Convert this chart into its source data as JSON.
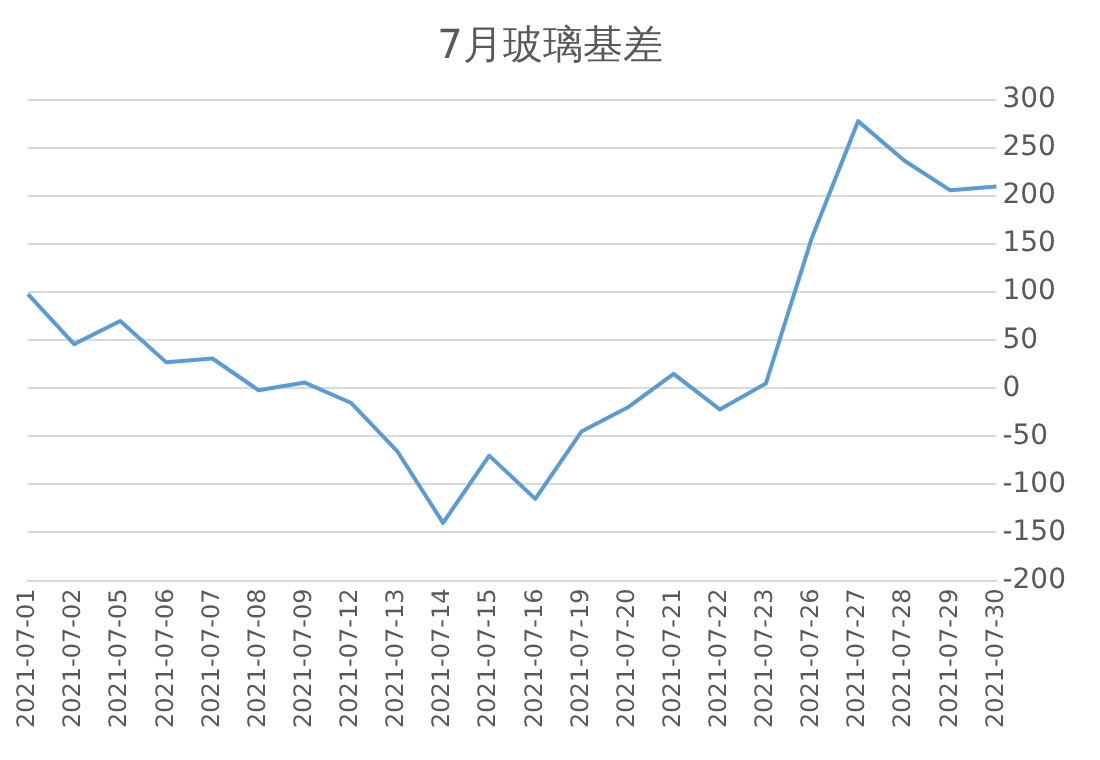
{
  "chart_data": {
    "type": "line",
    "title": "7月玻璃基差",
    "categories": [
      "2021-07-01",
      "2021-07-02",
      "2021-07-05",
      "2021-07-06",
      "2021-07-07",
      "2021-07-08",
      "2021-07-09",
      "2021-07-12",
      "2021-07-13",
      "2021-07-14",
      "2021-07-15",
      "2021-07-16",
      "2021-07-19",
      "2021-07-20",
      "2021-07-21",
      "2021-07-22",
      "2021-07-23",
      "2021-07-26",
      "2021-07-27",
      "2021-07-28",
      "2021-07-29",
      "2021-07-30"
    ],
    "series": [
      {
        "color": "#5b9bd5",
        "values": [
          98,
          46,
          70,
          27,
          31,
          -2,
          6,
          -15,
          -65,
          -140,
          -70,
          -115,
          -45,
          -20,
          15,
          -22,
          5,
          157,
          278,
          237,
          206,
          210
        ]
      }
    ],
    "ylim": [
      -200,
      300
    ],
    "yticks": [
      -200,
      -150,
      -100,
      -50,
      0,
      50,
      100,
      150,
      200,
      250,
      300
    ],
    "grid": "y",
    "legend": false,
    "marker": "none",
    "line_style": "solid"
  }
}
